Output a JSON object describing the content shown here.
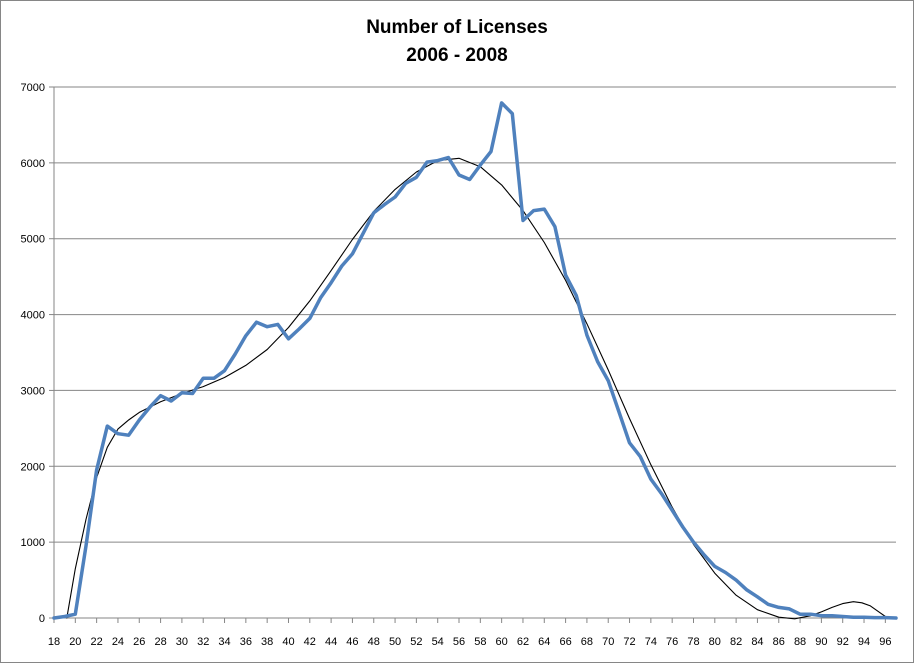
{
  "chart_data": {
    "type": "line",
    "title": "Number of Licenses",
    "subtitle": "2006 - 2008",
    "xlabel": "",
    "ylabel": "",
    "xlim": [
      18,
      97
    ],
    "ylim": [
      0,
      7000
    ],
    "y_ticks": [
      "0",
      "1000",
      "2000",
      "3000",
      "4000",
      "5000",
      "6000",
      "7000"
    ],
    "x_ticks": [
      "18",
      "20",
      "22",
      "24",
      "26",
      "28",
      "30",
      "32",
      "34",
      "36",
      "38",
      "40",
      "42",
      "44",
      "46",
      "48",
      "50",
      "52",
      "54",
      "56",
      "58",
      "60",
      "62",
      "64",
      "66",
      "68",
      "70",
      "72",
      "74",
      "76",
      "78",
      "80",
      "82",
      "84",
      "86",
      "88",
      "90",
      "92",
      "94",
      "96"
    ],
    "grid": "horizontal",
    "legend": "none",
    "series": [
      {
        "color": "#4F81BD",
        "x": [
          18,
          19,
          20,
          21,
          22,
          23,
          24,
          25,
          26,
          27,
          28,
          29,
          30,
          31,
          32,
          33,
          34,
          35,
          36,
          37,
          38,
          39,
          40,
          41,
          42,
          43,
          44,
          45,
          46,
          47,
          48,
          49,
          50,
          51,
          52,
          53,
          54,
          55,
          56,
          57,
          58,
          59,
          60,
          61,
          62,
          63,
          64,
          65,
          66,
          67,
          68,
          69,
          70,
          71,
          72,
          73,
          74,
          75,
          76,
          77,
          78,
          79,
          80,
          81,
          82,
          83,
          84,
          85,
          86,
          87,
          88,
          89,
          90,
          91,
          92,
          93,
          94,
          95,
          96,
          97
        ],
        "y": [
          0,
          20,
          50,
          950,
          1950,
          2530,
          2430,
          2410,
          2610,
          2780,
          2930,
          2860,
          2970,
          2960,
          3160,
          3160,
          3260,
          3480,
          3720,
          3900,
          3840,
          3870,
          3680,
          3810,
          3950,
          4220,
          4420,
          4640,
          4800,
          5070,
          5340,
          5450,
          5550,
          5730,
          5810,
          6010,
          6030,
          6070,
          5840,
          5780,
          5970,
          6150,
          6790,
          6650,
          5240,
          5370,
          5390,
          5160,
          4520,
          4250,
          3730,
          3380,
          3130,
          2720,
          2310,
          2130,
          1830,
          1640,
          1420,
          1200,
          1000,
          830,
          680,
          600,
          500,
          370,
          280,
          180,
          140,
          120,
          50,
          50,
          30,
          30,
          20,
          10,
          10,
          5,
          5,
          0
        ]
      },
      {
        "color": "#000000",
        "x": [
          19.2,
          20,
          21,
          22,
          23,
          24,
          25,
          26,
          28,
          30,
          32,
          34,
          36,
          38,
          40,
          42,
          44,
          46,
          48,
          50,
          52,
          54,
          56,
          58,
          60,
          62,
          64,
          66,
          68,
          70,
          72,
          74,
          76,
          78,
          80,
          82,
          84,
          86,
          87.5,
          89,
          90,
          91,
          92,
          93,
          93.8,
          94.6,
          95.4,
          96.2
        ],
        "y": [
          0,
          650,
          1300,
          1850,
          2250,
          2490,
          2610,
          2710,
          2850,
          2960,
          3050,
          3170,
          3330,
          3540,
          3830,
          4180,
          4580,
          4990,
          5360,
          5650,
          5880,
          6030,
          6060,
          5950,
          5710,
          5370,
          4950,
          4450,
          3880,
          3270,
          2630,
          2020,
          1460,
          970,
          590,
          300,
          110,
          10,
          -10,
          30,
          80,
          140,
          190,
          215,
          200,
          160,
          80,
          0
        ]
      }
    ]
  }
}
